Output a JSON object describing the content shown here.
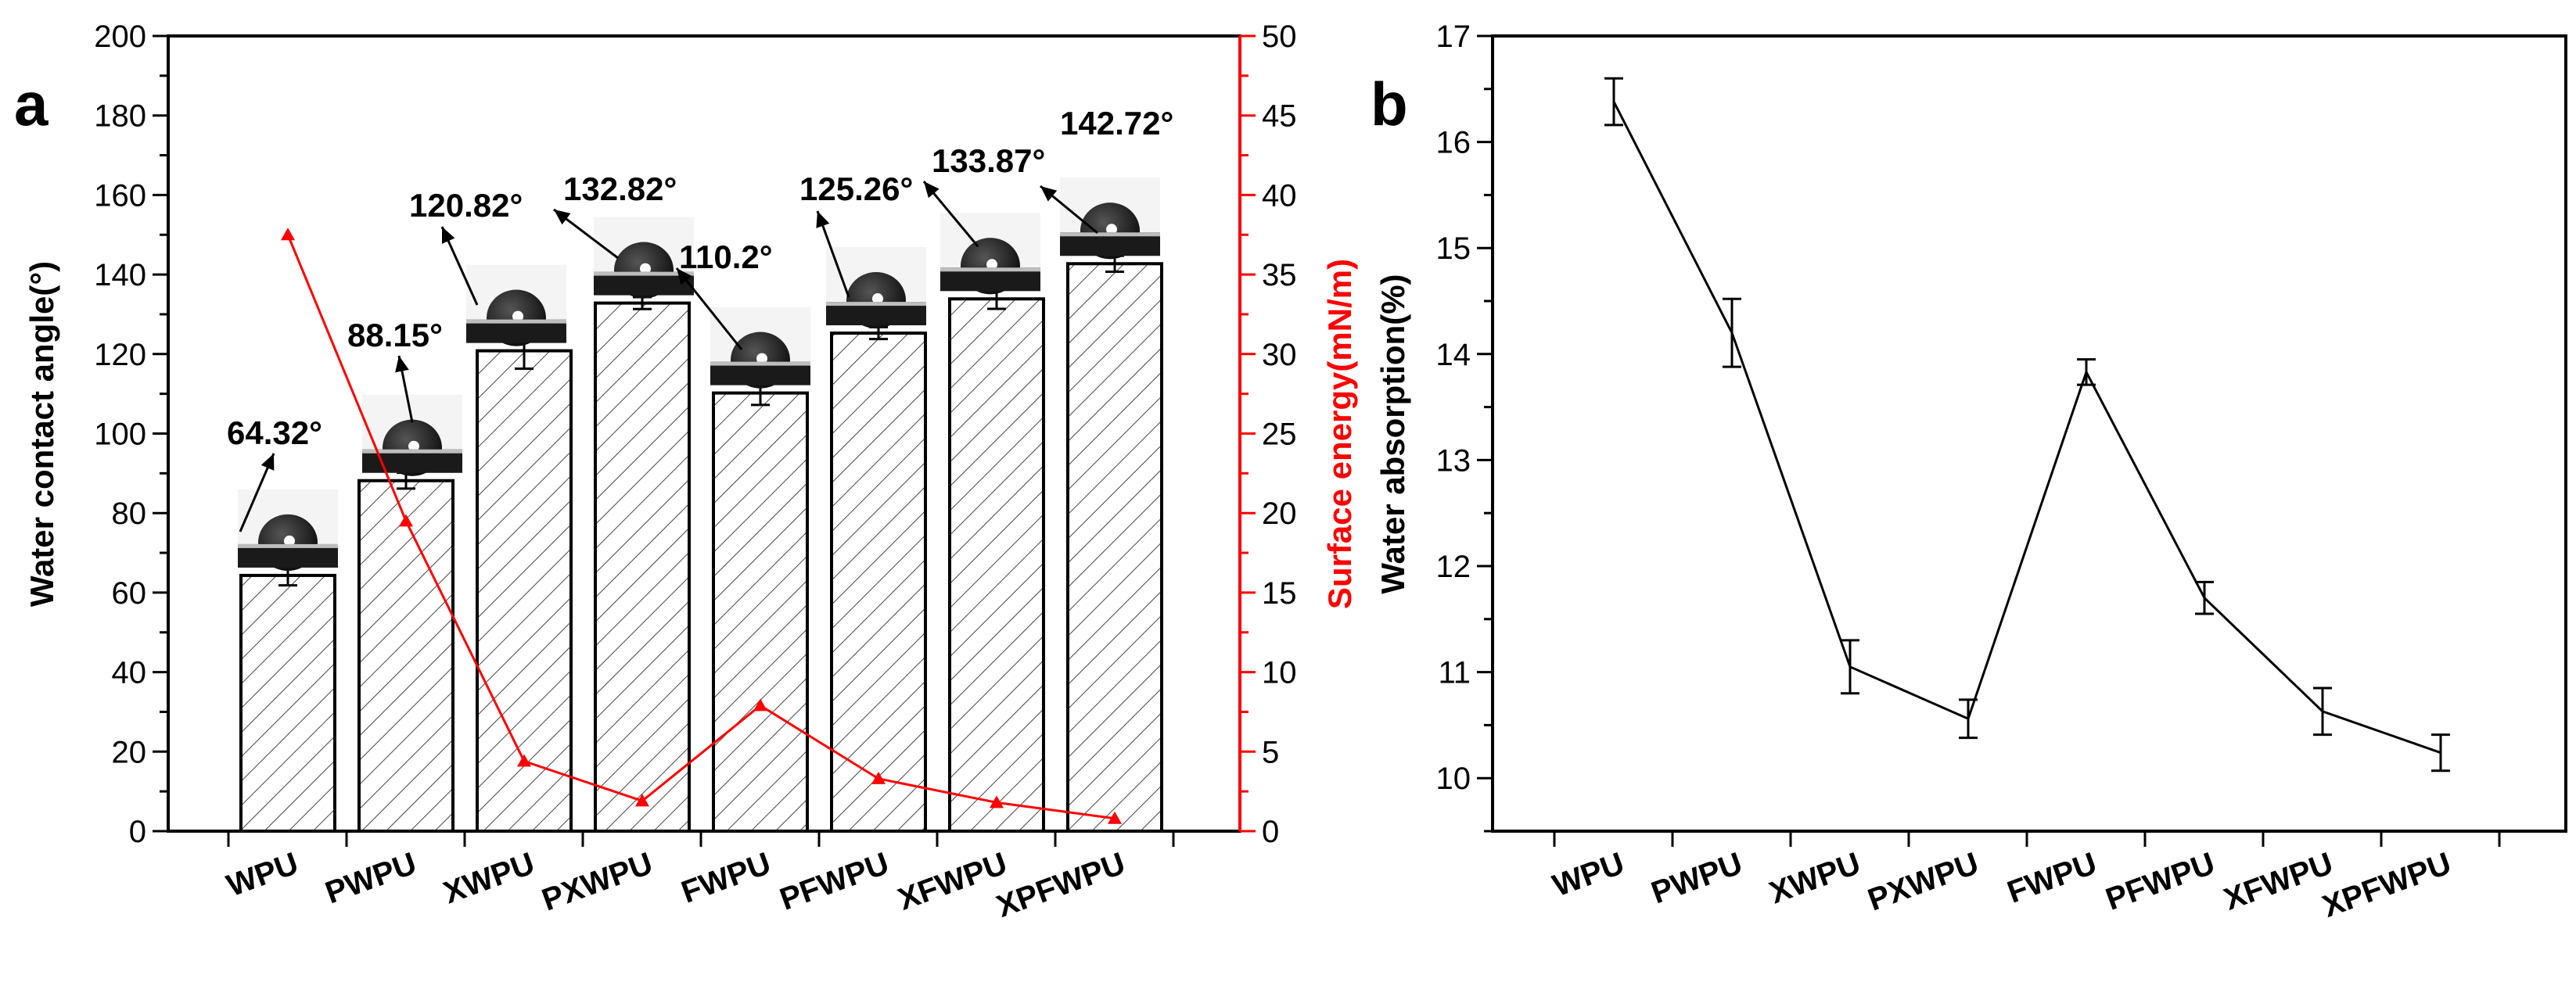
{
  "categories": [
    "WPU",
    "PWPU",
    "XWPU",
    "PXWPU",
    "FWPU",
    "PFWPU",
    "XFWPU",
    "XPFWPU"
  ],
  "chart_data": [
    {
      "panel": "a",
      "type": "bar",
      "ylabel": "Water contact angle(°)",
      "ylim": [
        0,
        200
      ],
      "yticks": [
        0,
        20,
        40,
        60,
        80,
        100,
        120,
        140,
        160,
        180,
        200
      ],
      "values": [
        64.32,
        88.15,
        120.82,
        132.82,
        110.2,
        125.26,
        133.87,
        142.72
      ],
      "errors": [
        2.5,
        2.0,
        4.5,
        1.5,
        3.0,
        1.5,
        2.5,
        2.0
      ],
      "value_labels": [
        "64.32°",
        "88.15°",
        "120.82°",
        "132.82°",
        "110.2°",
        "125.26°",
        "133.87°",
        "142.72°"
      ],
      "secondary": {
        "type": "line",
        "ylabel": "Surface energy(mN/m)",
        "ylim": [
          0,
          50
        ],
        "yticks": [
          0,
          5,
          10,
          15,
          20,
          25,
          30,
          35,
          40,
          45,
          50
        ],
        "values": [
          37.5,
          19.5,
          4.4,
          1.9,
          7.9,
          3.3,
          1.8,
          0.8
        ],
        "color": "#ff0000"
      }
    },
    {
      "panel": "b",
      "type": "line",
      "ylabel": "Water absorption(%)",
      "ylim": [
        9.5,
        17
      ],
      "yticks": [
        10,
        11,
        12,
        13,
        14,
        15,
        16,
        17
      ],
      "values": [
        16.38,
        14.2,
        11.05,
        10.56,
        13.83,
        11.7,
        10.63,
        10.24
      ],
      "errors": [
        0.22,
        0.32,
        0.25,
        0.18,
        0.12,
        0.15,
        0.22,
        0.17
      ]
    }
  ]
}
